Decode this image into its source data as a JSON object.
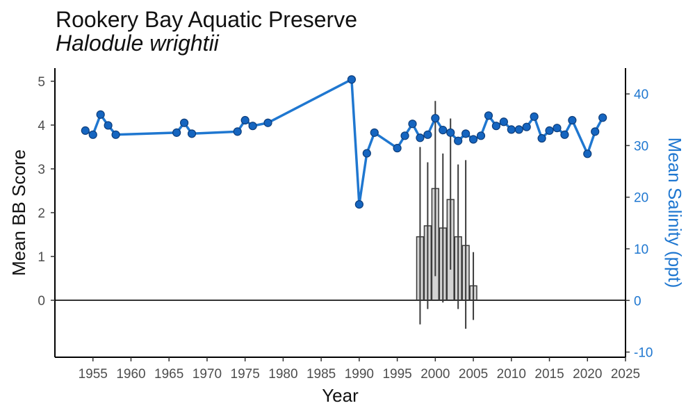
{
  "chart_data": {
    "type": "bar",
    "title": "Rookery Bay Aquatic Preserve",
    "subtitle": "Halodule wrightii",
    "xlabel": "Year",
    "ylabel": "Mean BB Score",
    "y2label": "Mean Salinity (ppt)",
    "xlim": [
      1950,
      2025
    ],
    "ylim": [
      -1.3,
      5.3
    ],
    "y2lim": [
      -11,
      45
    ],
    "x_ticks": [
      1955,
      1960,
      1965,
      1970,
      1975,
      1980,
      1985,
      1990,
      1995,
      2000,
      2005,
      2010,
      2015,
      2020,
      2025
    ],
    "y_ticks": [
      0,
      1,
      2,
      3,
      4,
      5
    ],
    "y2_ticks": [
      -10,
      0,
      10,
      20,
      30,
      40
    ],
    "grid": false,
    "colors": {
      "bar_fill": "#d3d3d3",
      "bar_stroke": "#3a3a3a",
      "errorbar": "#3a3a3a",
      "salinity_line": "#1f77d0",
      "salinity_point": "#1565c0",
      "salinity_point_edge": "#0d3d7a",
      "right_axis_text": "#1f77d0"
    },
    "bb_series": {
      "name": "Mean BB Score",
      "x": [
        1998,
        1999,
        2000,
        2001,
        2002,
        2003,
        2004,
        2005
      ],
      "values": [
        1.45,
        1.7,
        2.55,
        1.65,
        2.3,
        1.45,
        1.25,
        0.33
      ],
      "error_low": [
        -0.55,
        -0.2,
        0.55,
        -0.05,
        0.7,
        -0.2,
        -0.65,
        -0.45
      ],
      "error_high": [
        3.5,
        3.15,
        4.55,
        3.35,
        4.15,
        3.1,
        3.2,
        1.1
      ]
    },
    "salinity_series": {
      "name": "Mean Salinity (ppt)",
      "x": [
        1954,
        1955,
        1956,
        1957,
        1958,
        1966,
        1967,
        1968,
        1974,
        1975,
        1976,
        1978,
        1989,
        1990,
        1991,
        1992,
        1995,
        1996,
        1997,
        1998,
        1999,
        2000,
        2001,
        2002,
        2003,
        2004,
        2005,
        2006,
        2007,
        2008,
        2009,
        2010,
        2011,
        2012,
        2013,
        2014,
        2015,
        2016,
        2017,
        2018,
        2020,
        2021,
        2022
      ],
      "values": [
        32.9,
        32.1,
        36.0,
        33.9,
        32.1,
        32.5,
        34.4,
        32.3,
        32.7,
        34.9,
        33.8,
        34.4,
        42.8,
        18.6,
        28.5,
        32.5,
        29.5,
        31.9,
        34.2,
        31.5,
        32.1,
        35.3,
        33.0,
        32.5,
        30.9,
        32.3,
        31.2,
        31.9,
        35.8,
        33.8,
        34.6,
        33.1,
        33.1,
        33.6,
        35.6,
        31.4,
        32.9,
        33.4,
        32.1,
        34.9,
        28.4,
        32.7,
        35.4
      ]
    }
  }
}
